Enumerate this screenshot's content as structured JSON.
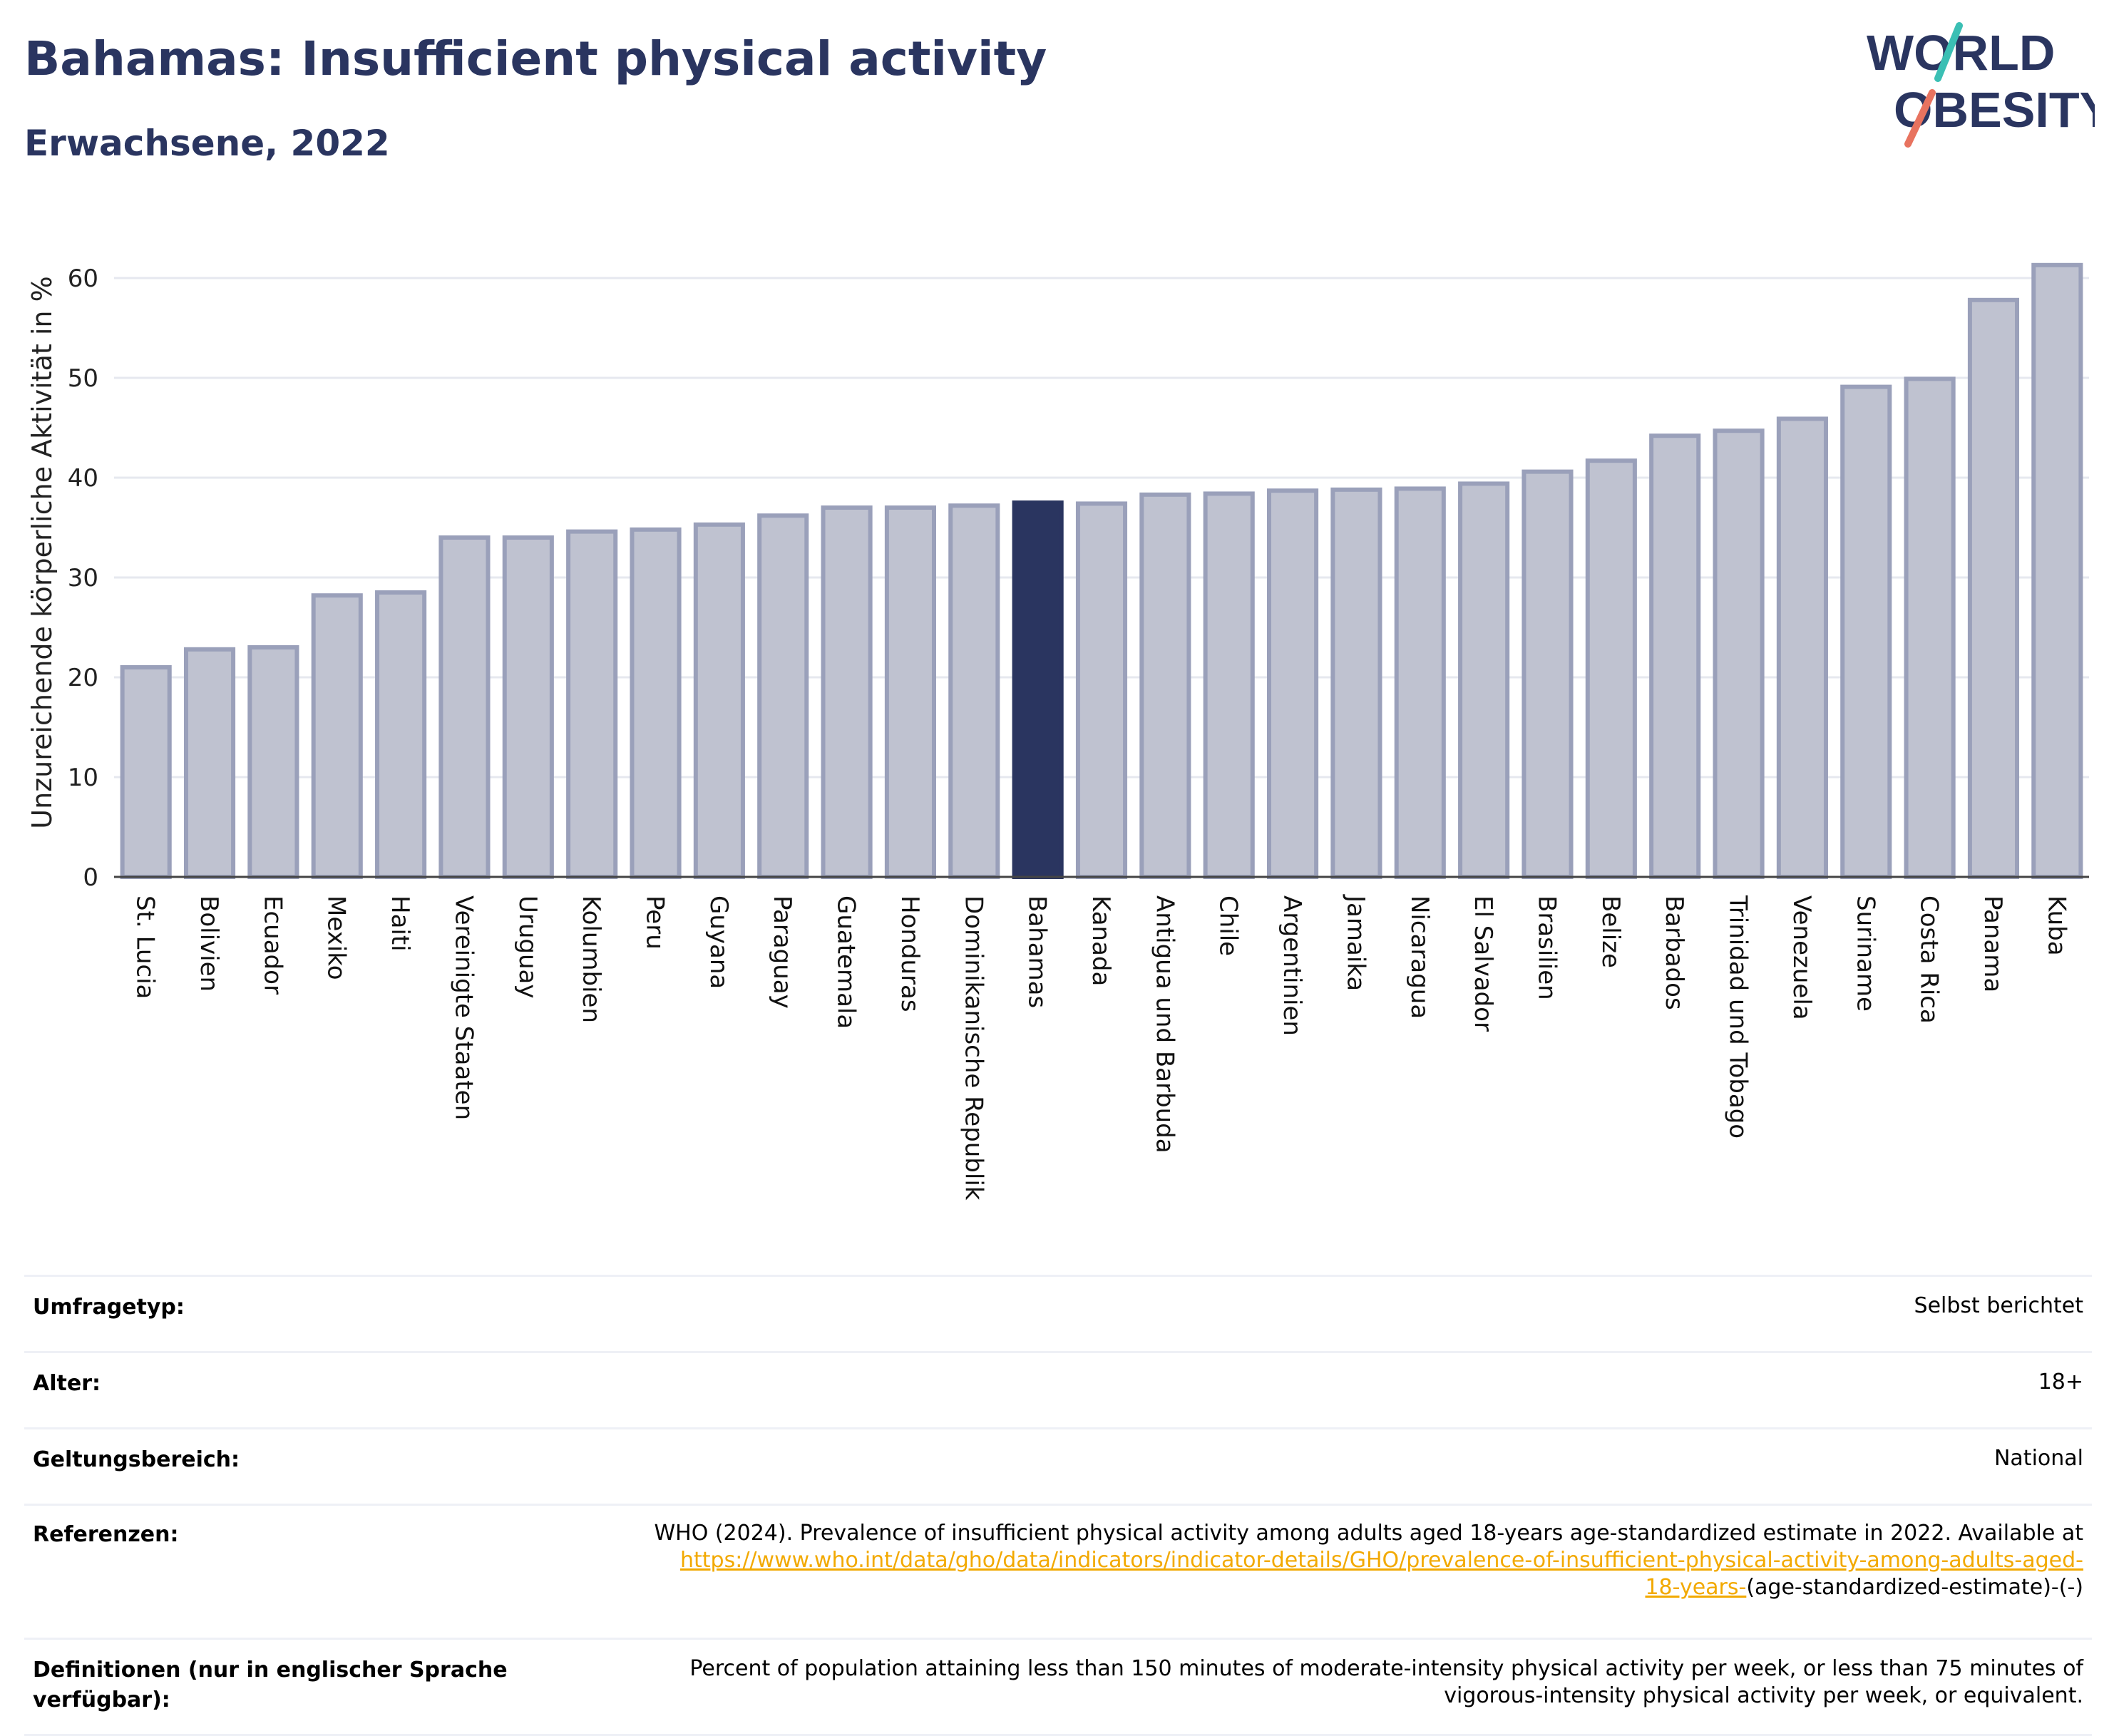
{
  "header": {
    "title": "Bahamas: Insufficient physical activity",
    "subtitle": "Erwachsene, 2022"
  },
  "logo": {
    "line1": "WORLD",
    "line2": "OBESITY"
  },
  "colors": {
    "bar": "#bfc2d0",
    "bar_border": "#9aa0ba",
    "highlight": "#2a3560",
    "title": "#2a3560",
    "link": "#f2a900",
    "accent_teal": "#3bbfb4",
    "accent_coral": "#e8735f"
  },
  "chart_data": {
    "type": "bar",
    "ylabel": "Unzureichende körperliche Aktivität in %",
    "xlabel": "",
    "ylim": [
      0,
      65
    ],
    "yticks": [
      0,
      10,
      20,
      30,
      40,
      50,
      60
    ],
    "grid": true,
    "highlight": "Bahamas",
    "categories": [
      "St. Lucia",
      "Bolivien",
      "Ecuador",
      "Mexiko",
      "Haiti",
      "Vereinigte Staaten",
      "Uruguay",
      "Kolumbien",
      "Peru",
      "Guyana",
      "Paraguay",
      "Guatemala",
      "Honduras",
      "Dominikanische Republik",
      "Bahamas",
      "Kanada",
      "Antigua und Barbuda",
      "Chile",
      "Argentinien",
      "Jamaika",
      "Nicaragua",
      "El Salvador",
      "Brasilien",
      "Belize",
      "Barbados",
      "Trinidad und Tobago",
      "Venezuela",
      "Suriname",
      "Costa Rica",
      "Panama",
      "Kuba"
    ],
    "values": [
      21.0,
      22.8,
      23.0,
      28.2,
      28.5,
      34.0,
      34.0,
      34.6,
      34.8,
      35.3,
      36.2,
      37.0,
      37.0,
      37.2,
      37.5,
      37.4,
      38.3,
      38.4,
      38.7,
      38.8,
      38.9,
      39.4,
      40.6,
      41.7,
      44.2,
      44.7,
      45.9,
      49.1,
      49.9,
      57.8,
      61.3
    ]
  },
  "info": {
    "survey_type": {
      "label": "Umfragetyp:",
      "value": "Selbst berichtet"
    },
    "age": {
      "label": "Alter:",
      "value": "18+"
    },
    "scope": {
      "label": "Geltungsbereich:",
      "value": "National"
    },
    "references": {
      "label": "Referenzen:",
      "text": "WHO (2024). Prevalence of insufficient physical activity among adults aged 18-years age-standardized estimate in 2022. Available at",
      "link_part1": "https://www.who.int/data/gho/data/indicators/indicator-details/GHO/prevalence-of-insufficient-physical-activity-among-adults-aged-",
      "link_part2": "18-years-",
      "suffix": "(age-standardized-estimate)-(-)"
    },
    "definitions": {
      "label": "Definitionen (nur in englischer Sprache verfügbar):",
      "text_line1": "Percent of population attaining less than 150 minutes of moderate-intensity physical activity per week, or less than 75 minutes of",
      "text_line2": "vigorous-intensity physical activity per week, or equivalent."
    }
  }
}
